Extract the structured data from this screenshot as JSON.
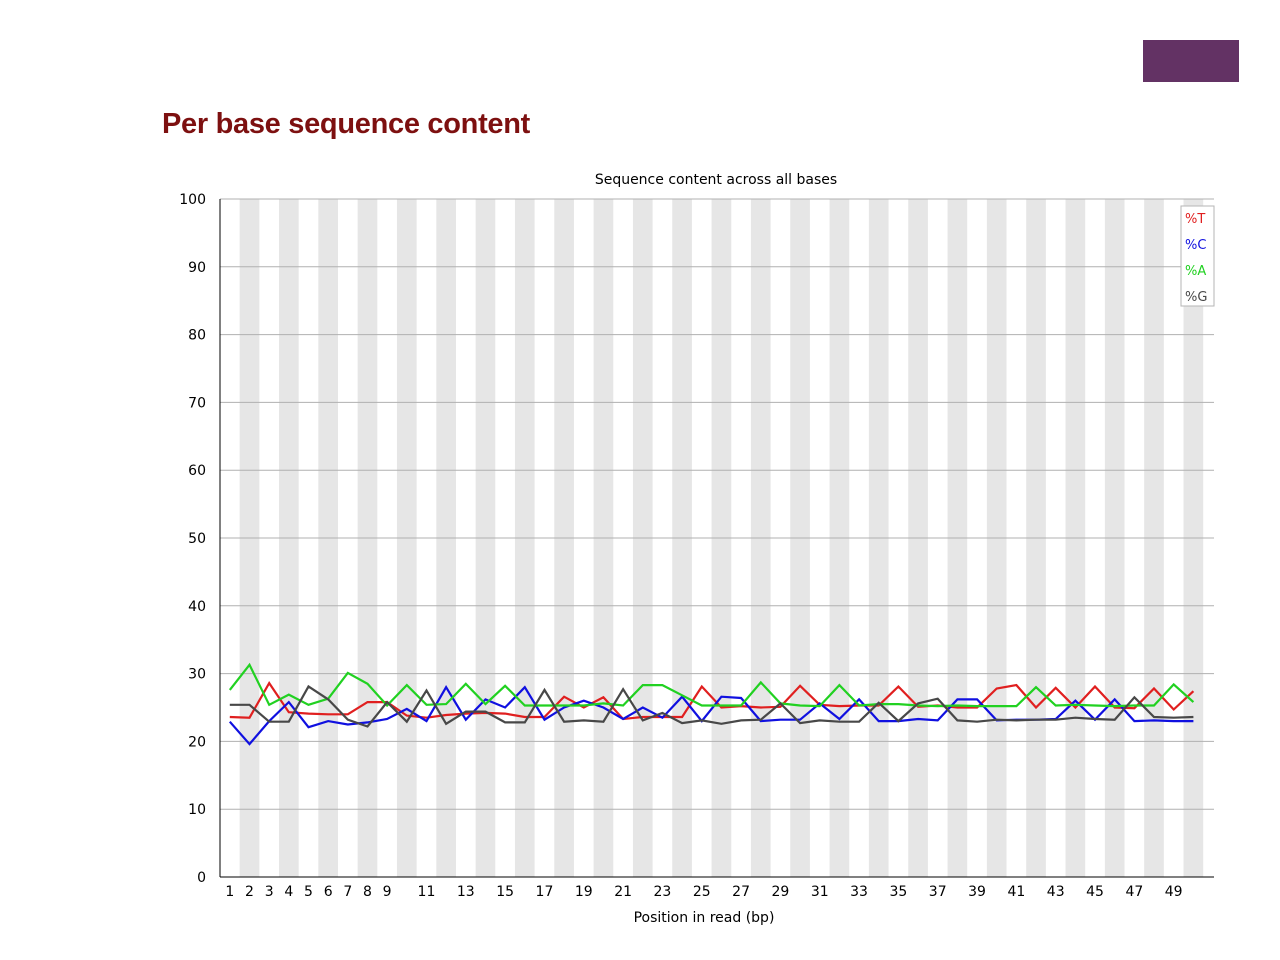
{
  "slide": {
    "title": "Per base sequence content",
    "title_color": "#7d1010",
    "corner_block_color": "#633264"
  },
  "chart_data": {
    "type": "line",
    "title": "Sequence content across all bases",
    "xlabel": "Position in read (bp)",
    "ylabel": "",
    "ylim": [
      0,
      100
    ],
    "yticks": [
      0,
      10,
      20,
      30,
      40,
      50,
      60,
      70,
      80,
      90,
      100
    ],
    "x": [
      1,
      2,
      3,
      4,
      5,
      6,
      7,
      8,
      9,
      10,
      11,
      12,
      13,
      14,
      15,
      16,
      17,
      18,
      19,
      20,
      21,
      22,
      23,
      24,
      25,
      26,
      27,
      28,
      29,
      30,
      31,
      32,
      33,
      34,
      35,
      36,
      37,
      38,
      39,
      40,
      41,
      42,
      43,
      44,
      45,
      46,
      47,
      48,
      49,
      50
    ],
    "xtick_labels": [
      "1",
      "2",
      "3",
      "4",
      "5",
      "6",
      "7",
      "8",
      "9",
      "11",
      "13",
      "15",
      "17",
      "19",
      "21",
      "23",
      "25",
      "27",
      "29",
      "31",
      "33",
      "35",
      "37",
      "39",
      "41",
      "43",
      "45",
      "47",
      "49"
    ],
    "grid": true,
    "band_colors": [
      "#ffffff",
      "#e6e6e6"
    ],
    "legend_position": "top-right",
    "series": [
      {
        "name": "%T",
        "color": "#e01f1f",
        "values": [
          23.6,
          23.5,
          28.6,
          24.3,
          24.1,
          24.0,
          24.0,
          25.8,
          25.8,
          23.8,
          23.5,
          23.9,
          24.1,
          24.2,
          24.1,
          23.6,
          23.6,
          26.6,
          25.0,
          26.5,
          23.3,
          23.6,
          23.6,
          23.6,
          28.1,
          25.0,
          25.2,
          25.0,
          25.1,
          28.2,
          25.4,
          25.2,
          25.3,
          25.3,
          28.1,
          25.1,
          25.3,
          25.0,
          25.0,
          27.8,
          28.3,
          25.0,
          27.9,
          25.0,
          28.1,
          25.0,
          24.9,
          27.8,
          24.7,
          27.4
        ]
      },
      {
        "name": "%C",
        "color": "#1010e0",
        "values": [
          22.9,
          19.6,
          23.0,
          25.8,
          22.1,
          23.0,
          22.5,
          22.8,
          23.3,
          24.8,
          23.0,
          28.0,
          23.2,
          26.2,
          25.0,
          28.0,
          23.2,
          25.0,
          26.0,
          25.0,
          23.3,
          25.0,
          23.5,
          26.6,
          23.0,
          26.6,
          26.4,
          23.0,
          23.2,
          23.2,
          25.6,
          23.3,
          26.2,
          23.0,
          23.0,
          23.3,
          23.1,
          26.2,
          26.2,
          23.1,
          23.2,
          23.2,
          23.3,
          26.0,
          23.2,
          26.2,
          23.0,
          23.1,
          23.0,
          23.0
        ]
      },
      {
        "name": "%A",
        "color": "#21d121",
        "values": [
          27.6,
          31.3,
          25.4,
          26.9,
          25.4,
          26.3,
          30.1,
          28.5,
          25.3,
          28.3,
          25.4,
          25.5,
          28.5,
          25.5,
          28.2,
          25.3,
          25.3,
          25.3,
          25.3,
          25.6,
          25.3,
          28.3,
          28.3,
          26.8,
          25.3,
          25.3,
          25.3,
          28.7,
          25.6,
          25.3,
          25.2,
          28.3,
          25.3,
          25.5,
          25.5,
          25.3,
          25.2,
          25.3,
          25.2,
          25.2,
          25.2,
          28.0,
          25.3,
          25.4,
          25.3,
          25.2,
          25.3,
          25.3,
          28.4,
          25.8
        ]
      },
      {
        "name": "%G",
        "color": "#484848",
        "values": [
          25.4,
          25.4,
          22.9,
          22.9,
          28.1,
          26.2,
          23.2,
          22.2,
          25.8,
          22.9,
          27.5,
          22.6,
          24.4,
          24.4,
          22.8,
          22.8,
          27.6,
          22.9,
          23.1,
          22.9,
          27.7,
          23.1,
          24.2,
          22.7,
          23.1,
          22.6,
          23.1,
          23.2,
          25.6,
          22.7,
          23.1,
          22.9,
          22.9,
          25.7,
          23.0,
          25.6,
          26.3,
          23.1,
          22.9,
          23.2,
          23.1,
          23.2,
          23.2,
          23.5,
          23.3,
          23.2,
          26.5,
          23.6,
          23.5,
          23.6
        ]
      }
    ]
  }
}
